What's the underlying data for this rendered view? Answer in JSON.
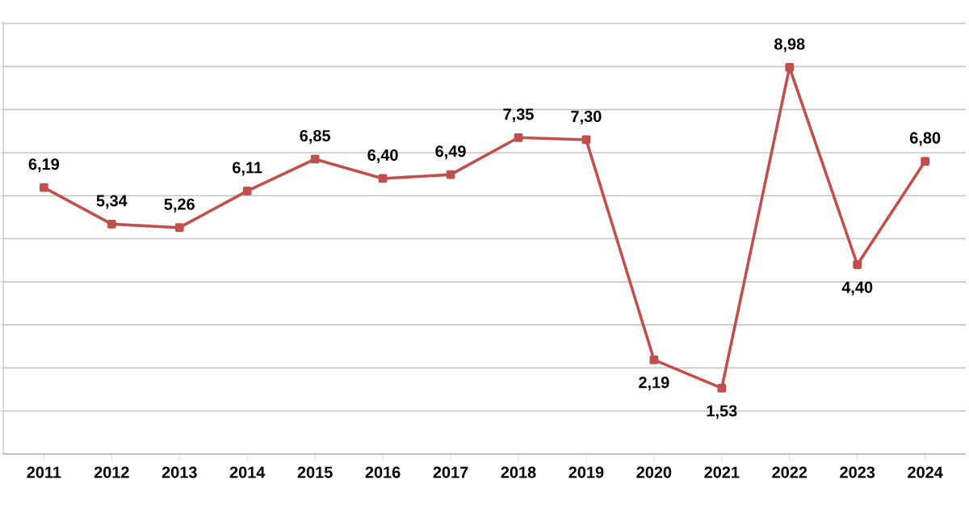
{
  "chart_data": {
    "type": "line",
    "categories": [
      "2011",
      "2012",
      "2013",
      "2014",
      "2015",
      "2016",
      "2017",
      "2018",
      "2019",
      "2020",
      "2021",
      "2022",
      "2023",
      "2024"
    ],
    "values": [
      6.19,
      5.34,
      5.26,
      6.11,
      6.85,
      6.4,
      6.49,
      7.35,
      7.3,
      2.19,
      1.53,
      8.98,
      4.4,
      6.8
    ],
    "value_labels": [
      "6,19",
      "5,34",
      "5,26",
      "6,11",
      "6,85",
      "6,40",
      "6,49",
      "7,35",
      "7,30",
      "2,19",
      "1,53",
      "8,98",
      "4,40",
      "6,80"
    ],
    "color": "#c0504d",
    "marker": "square",
    "line_style": "solid",
    "tick_labels": "x",
    "grid": "y"
  }
}
